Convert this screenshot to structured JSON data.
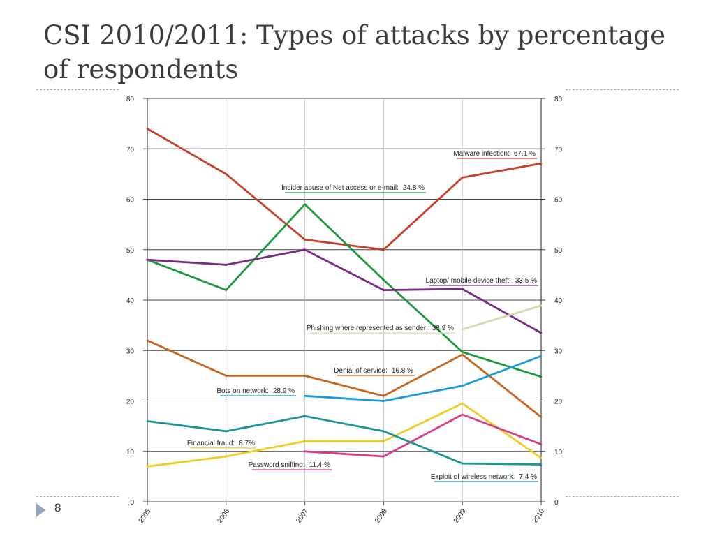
{
  "slide": {
    "title": "CSI 2010/2011: Types of attacks by percentage of respondents",
    "page_number": "8"
  },
  "colors": {
    "malware": "#c8402a",
    "insider": "#1a9a3a",
    "laptop": "#7a2a86",
    "phishing": "#dcd6b0",
    "denial": "#c8641e",
    "bots": "#1e9ad8",
    "financial": "#f0cc22",
    "password": "#d83c8a",
    "wireless": "#1a9696",
    "grid": "#444444"
  },
  "chart_data": {
    "type": "line",
    "categories": [
      "2005",
      "2006",
      "2007",
      "2008",
      "2009",
      "2010"
    ],
    "ylim": [
      0,
      80
    ],
    "yticks": [
      "0",
      "10",
      "20",
      "30",
      "40",
      "50",
      "60",
      "70",
      "80"
    ],
    "grid": true,
    "series": [
      {
        "key": "malware",
        "label": "Malware infection:",
        "value_text": "67.1 %",
        "values": [
          74,
          65,
          52,
          50,
          64.3,
          67.1
        ]
      },
      {
        "key": "insider",
        "label": "Insider abuse of Net access or e-mail:",
        "value_text": "24.8 %",
        "values": [
          48,
          42,
          59,
          44,
          29.7,
          24.8
        ]
      },
      {
        "key": "laptop",
        "label": "Laptop/ mobile device theft:",
        "value_text": "33.5 %",
        "values": [
          48,
          47,
          50,
          42,
          42.2,
          33.5
        ]
      },
      {
        "key": "phishing",
        "label": "Phishing where represented as sender:",
        "value_text": "38.9 %",
        "values": [
          null,
          null,
          null,
          null,
          34.2,
          38.9
        ]
      },
      {
        "key": "denial",
        "label": "Denial of service:",
        "value_text": "16.8 %",
        "values": [
          32,
          25,
          25,
          21,
          29.2,
          16.8
        ]
      },
      {
        "key": "bots",
        "label": "Bots on network:",
        "value_text": "28.9 %",
        "values": [
          null,
          null,
          21,
          20,
          23,
          28.9
        ]
      },
      {
        "key": "financial",
        "label": "Financial fraud:",
        "value_text": "8.7%",
        "values": [
          7,
          9,
          12,
          12,
          19.5,
          8.7
        ]
      },
      {
        "key": "password",
        "label": "Password sniffing:",
        "value_text": "11.4 %",
        "values": [
          null,
          null,
          10,
          9,
          17.3,
          11.4
        ]
      },
      {
        "key": "wireless",
        "label": "Exploit of wireless network:",
        "value_text": "7.4 %",
        "values": [
          16,
          14,
          17,
          14,
          7.6,
          7.4
        ]
      }
    ]
  }
}
